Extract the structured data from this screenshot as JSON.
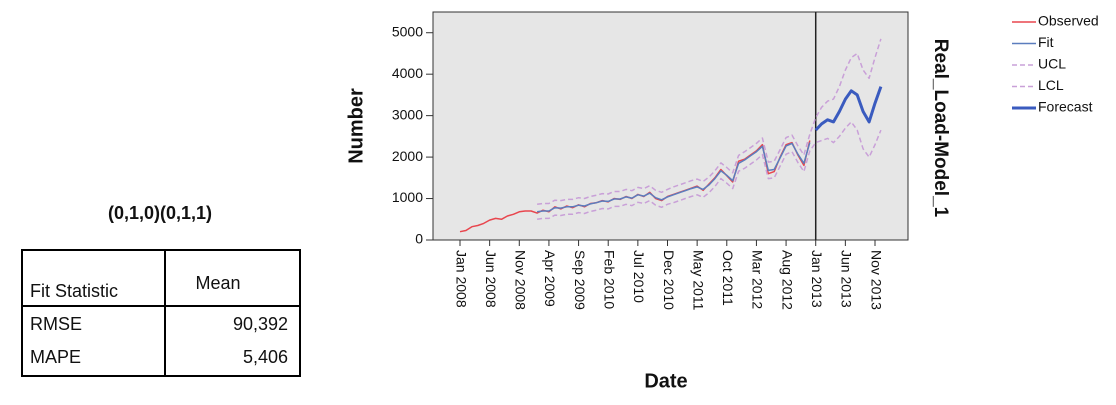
{
  "chart_data": {
    "type": "line",
    "y_label": "Number",
    "x_label": "Date",
    "side_label": "Real_Load-Model_1",
    "categories": [
      "Jan 2008",
      null,
      null,
      null,
      null,
      "Jun 2008",
      null,
      null,
      null,
      null,
      "Nov 2008",
      null,
      null,
      null,
      null,
      "Apr 2009",
      null,
      null,
      null,
      null,
      "Sep 2009",
      null,
      null,
      null,
      null,
      "Feb 2010",
      null,
      null,
      null,
      null,
      "Jul 2010",
      null,
      null,
      null,
      null,
      "Dec 2010",
      null,
      null,
      null,
      null,
      "May 2011",
      null,
      null,
      null,
      null,
      "Oct 2011",
      null,
      null,
      null,
      null,
      "Mar 2012",
      null,
      null,
      null,
      null,
      "Aug 2012",
      null,
      null,
      null,
      null,
      "Jan 2013",
      null,
      null,
      null,
      null,
      "Jun 2013",
      null,
      null,
      null,
      null,
      "Nov 2013",
      null
    ],
    "series": [
      {
        "name": "Observed",
        "color": "#e8464e",
        "values": [
          200,
          230,
          320,
          350,
          400,
          480,
          520,
          500,
          580,
          620,
          680,
          700,
          700,
          650,
          720,
          680,
          800,
          750,
          820,
          780,
          850,
          800,
          880,
          900,
          950,
          920,
          1000,
          980,
          1050,
          1000,
          1100,
          1050,
          1150,
          1000,
          950,
          1050,
          1100,
          1150,
          1200,
          1250,
          1300,
          1200,
          1350,
          1500,
          1700,
          1550,
          1400,
          1900,
          1950,
          2050,
          2150,
          2300,
          1600,
          1650,
          2000,
          2300,
          2350,
          2050,
          1800,
          2400,
          null,
          null,
          null,
          null,
          null,
          null,
          null,
          null,
          null,
          null,
          null,
          null
        ]
      },
      {
        "name": "Fit",
        "color": "#5b7dbe",
        "values": [
          null,
          null,
          null,
          null,
          null,
          null,
          null,
          null,
          null,
          null,
          null,
          null,
          null,
          680,
          700,
          700,
          780,
          770,
          800,
          800,
          840,
          820,
          870,
          900,
          940,
          930,
          990,
          990,
          1040,
          1010,
          1090,
          1060,
          1130,
          1020,
          970,
          1040,
          1090,
          1140,
          1190,
          1240,
          1280,
          1220,
          1330,
          1480,
          1670,
          1560,
          1430,
          1850,
          1930,
          2030,
          2130,
          2260,
          1680,
          1700,
          1980,
          2270,
          2330,
          2070,
          1850,
          2350,
          null,
          null,
          null,
          null,
          null,
          null,
          null,
          null,
          null,
          null,
          null,
          null
        ]
      },
      {
        "name": "UCL",
        "color": "#c9a0d8",
        "dashed": true,
        "values": [
          null,
          null,
          null,
          null,
          null,
          null,
          null,
          null,
          null,
          null,
          null,
          null,
          null,
          860,
          880,
          880,
          960,
          950,
          980,
          980,
          1020,
          1000,
          1050,
          1080,
          1120,
          1110,
          1170,
          1170,
          1220,
          1190,
          1270,
          1240,
          1310,
          1200,
          1150,
          1220,
          1280,
          1330,
          1380,
          1430,
          1470,
          1410,
          1520,
          1670,
          1860,
          1750,
          1620,
          2040,
          2130,
          2230,
          2330,
          2460,
          1880,
          1900,
          2180,
          2470,
          2530,
          2270,
          2050,
          2550,
          2950,
          3200,
          3350,
          3400,
          3700,
          4100,
          4400,
          4500,
          4100,
          3900,
          4400,
          4850
        ]
      },
      {
        "name": "LCL",
        "color": "#c9a0d8",
        "dashed": true,
        "values": [
          null,
          null,
          null,
          null,
          null,
          null,
          null,
          null,
          null,
          null,
          null,
          null,
          null,
          500,
          520,
          520,
          600,
          590,
          620,
          620,
          660,
          640,
          690,
          720,
          760,
          750,
          810,
          810,
          860,
          830,
          910,
          880,
          950,
          840,
          790,
          860,
          900,
          950,
          1000,
          1050,
          1090,
          1030,
          1140,
          1290,
          1480,
          1370,
          1240,
          1660,
          1730,
          1830,
          1930,
          2060,
          1480,
          1500,
          1780,
          2070,
          2130,
          1870,
          1650,
          2150,
          2350,
          2400,
          2450,
          2350,
          2500,
          2700,
          2850,
          2650,
          2200,
          2000,
          2300,
          2650
        ]
      },
      {
        "name": "Forecast",
        "color": "#3a5bbf",
        "bold": true,
        "values": [
          null,
          null,
          null,
          null,
          null,
          null,
          null,
          null,
          null,
          null,
          null,
          null,
          null,
          null,
          null,
          null,
          null,
          null,
          null,
          null,
          null,
          null,
          null,
          null,
          null,
          null,
          null,
          null,
          null,
          null,
          null,
          null,
          null,
          null,
          null,
          null,
          null,
          null,
          null,
          null,
          null,
          null,
          null,
          null,
          null,
          null,
          null,
          null,
          null,
          null,
          null,
          null,
          null,
          null,
          null,
          null,
          null,
          null,
          null,
          null,
          2650,
          2800,
          2900,
          2850,
          3100,
          3400,
          3600,
          3500,
          3100,
          2850,
          3300,
          3700
        ]
      }
    ],
    "ylim": [
      0,
      5500
    ],
    "yticks": [
      0,
      1000,
      2000,
      3000,
      4000,
      5000
    ],
    "grid": false,
    "legend": "right"
  },
  "fit_table": {
    "title": "(0,1,0)(0,1,1)",
    "header": [
      "Fit Statistic",
      "Mean"
    ],
    "rows": [
      [
        "RMSE",
        "90,392"
      ],
      [
        "MAPE",
        "5,406"
      ]
    ]
  }
}
